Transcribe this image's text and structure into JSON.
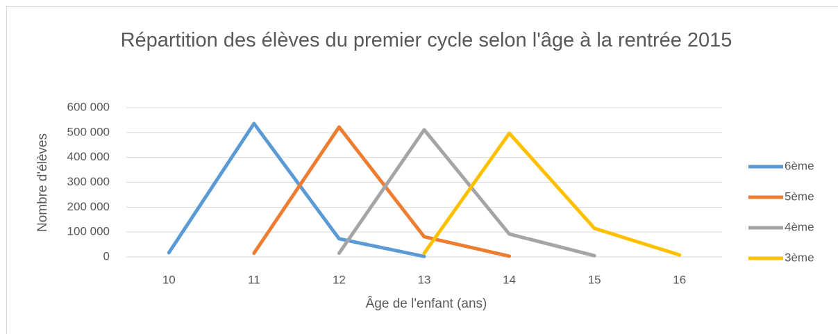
{
  "chart_data": {
    "type": "line",
    "title": "Répartition des élèves du premier cycle selon l'âge à la rentrée 2015",
    "x_label": "Âge de l'enfant (ans)",
    "y_label": "Nombre d'élèves",
    "categories": [
      "10",
      "11",
      "12",
      "13",
      "14",
      "15",
      "16"
    ],
    "series": [
      {
        "name": "6ème",
        "color": "#5b9bd5",
        "values": [
          17000,
          536000,
          73000,
          2000,
          null,
          null,
          null
        ]
      },
      {
        "name": "5ème",
        "color": "#ed7d31",
        "values": [
          null,
          15000,
          522000,
          81000,
          3000,
          null,
          null
        ]
      },
      {
        "name": "4ème",
        "color": "#a5a5a5",
        "values": [
          null,
          null,
          15000,
          511000,
          92000,
          5000,
          null
        ]
      },
      {
        "name": "3ème",
        "color": "#ffc000",
        "values": [
          null,
          null,
          null,
          15000,
          497000,
          115000,
          8000
        ]
      }
    ],
    "ylim": [
      0,
      600000
    ],
    "yticks": [
      0,
      {
        "value": 100000,
        "label": "100 000"
      },
      {
        "value": 200000,
        "label": "200 000"
      },
      {
        "value": 300000,
        "label": "300 000"
      },
      {
        "value": 400000,
        "label": "400 000"
      },
      {
        "value": 500000,
        "label": "500 000"
      },
      {
        "value": 600000,
        "label": "600 000"
      }
    ],
    "grid": true,
    "legend": "right"
  }
}
